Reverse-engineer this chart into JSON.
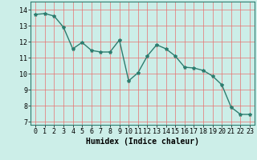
{
  "x": [
    0,
    1,
    2,
    3,
    4,
    5,
    6,
    7,
    8,
    9,
    10,
    11,
    12,
    13,
    14,
    15,
    16,
    17,
    18,
    19,
    20,
    21,
    22,
    23
  ],
  "y": [
    13.7,
    13.75,
    13.6,
    12.9,
    11.55,
    11.95,
    11.45,
    11.35,
    11.35,
    12.1,
    9.55,
    10.05,
    11.1,
    11.8,
    11.55,
    11.1,
    10.4,
    10.35,
    10.2,
    9.85,
    9.3,
    7.9,
    7.45,
    7.45
  ],
  "line_color": "#2d7d6f",
  "marker": "*",
  "marker_color": "#2d7d6f",
  "bg_color": "#cceee8",
  "grid_color": "#e87070",
  "xlabel": "Humidex (Indice chaleur)",
  "xlim": [
    -0.5,
    23.5
  ],
  "ylim": [
    6.8,
    14.5
  ],
  "yticks": [
    7,
    8,
    9,
    10,
    11,
    12,
    13,
    14
  ],
  "xticks": [
    0,
    1,
    2,
    3,
    4,
    5,
    6,
    7,
    8,
    9,
    10,
    11,
    12,
    13,
    14,
    15,
    16,
    17,
    18,
    19,
    20,
    21,
    22,
    23
  ],
  "xlabel_fontsize": 7,
  "tick_fontsize": 6,
  "line_width": 1.0,
  "marker_size": 3
}
